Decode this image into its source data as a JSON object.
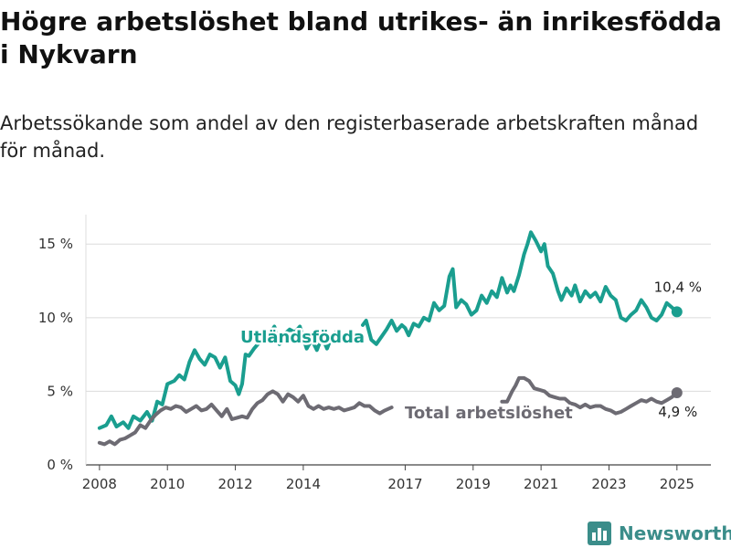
{
  "title": "Högre arbetslöshet bland utrikes- än inrikesfödda i Nykvarn",
  "subtitle": "Arbetssökande som andel av den registerbaserade arbetskraften månad för månad.",
  "brand": {
    "name": "Newsworthy",
    "icon": "bar-chart-logo-icon"
  },
  "chart_data": {
    "type": "line",
    "title": "Högre arbetslöshet bland utrikes- än inrikesfödda i Nykvarn",
    "subtitle": "Arbetssökande som andel av den registerbaserade arbetskraften månad för månad.",
    "xlabel": "",
    "ylabel": "",
    "xlim": [
      2007.6,
      2026.0
    ],
    "ylim": [
      0,
      17
    ],
    "grid": true,
    "legend": "inline",
    "x_ticks": [
      {
        "value": 2008,
        "label": "2008"
      },
      {
        "value": 2010,
        "label": "2010"
      },
      {
        "value": 2012,
        "label": "2012"
      },
      {
        "value": 2014,
        "label": "2014"
      },
      {
        "value": 2017,
        "label": "2017"
      },
      {
        "value": 2019,
        "label": "2019"
      },
      {
        "value": 2021,
        "label": "2021"
      },
      {
        "value": 2023,
        "label": "2023"
      },
      {
        "value": 2025,
        "label": "2025"
      }
    ],
    "y_ticks": [
      {
        "value": 0,
        "label": "0 %"
      },
      {
        "value": 5,
        "label": "5 %"
      },
      {
        "value": 10,
        "label": "10 %"
      },
      {
        "value": 15,
        "label": "15 %"
      }
    ],
    "series": [
      {
        "name": "Utländsfödda",
        "color": "#1a9e8f",
        "end_label": "10,4 %",
        "segments": [
          [
            [
              2008.0,
              2.5
            ],
            [
              2008.2,
              2.7
            ],
            [
              2008.35,
              3.3
            ],
            [
              2008.5,
              2.6
            ],
            [
              2008.7,
              2.9
            ],
            [
              2008.85,
              2.5
            ],
            [
              2009.0,
              3.3
            ],
            [
              2009.2,
              3.0
            ],
            [
              2009.4,
              3.6
            ],
            [
              2009.55,
              3.0
            ],
            [
              2009.7,
              4.3
            ],
            [
              2009.85,
              4.1
            ],
            [
              2010.0,
              5.5
            ],
            [
              2010.2,
              5.7
            ],
            [
              2010.35,
              6.1
            ],
            [
              2010.5,
              5.8
            ],
            [
              2010.65,
              7.0
            ],
            [
              2010.8,
              7.8
            ],
            [
              2010.95,
              7.2
            ],
            [
              2011.1,
              6.8
            ],
            [
              2011.25,
              7.5
            ],
            [
              2011.4,
              7.3
            ],
            [
              2011.55,
              6.6
            ],
            [
              2011.7,
              7.3
            ],
            [
              2011.85,
              5.7
            ],
            [
              2012.0,
              5.4
            ],
            [
              2012.1,
              4.8
            ],
            [
              2012.2,
              5.5
            ],
            [
              2012.3,
              7.5
            ],
            [
              2012.4,
              7.4
            ],
            [
              2012.55,
              7.9
            ],
            [
              2012.7,
              8.3
            ],
            [
              2012.85,
              8.7
            ],
            [
              2013.0,
              8.9
            ],
            [
              2013.15,
              9.4
            ],
            [
              2013.3,
              8.2
            ],
            [
              2013.45,
              8.9
            ],
            [
              2013.6,
              9.2
            ],
            [
              2013.75,
              9.0
            ],
            [
              2013.9,
              9.4
            ],
            [
              2014.0,
              8.6
            ],
            [
              2014.1,
              7.9
            ],
            [
              2014.25,
              8.5
            ],
            [
              2014.4,
              7.8
            ],
            [
              2014.55,
              8.7
            ],
            [
              2014.7,
              7.9
            ],
            [
              2014.85,
              8.8
            ],
            [
              2015.0,
              9.1
            ],
            [
              2015.1,
              8.5
            ]
          ],
          [
            [
              2015.75,
              9.5
            ],
            [
              2015.85,
              9.8
            ],
            [
              2016.0,
              8.5
            ],
            [
              2016.15,
              8.2
            ],
            [
              2016.3,
              8.7
            ],
            [
              2016.45,
              9.2
            ],
            [
              2016.6,
              9.8
            ],
            [
              2016.75,
              9.1
            ],
            [
              2016.9,
              9.5
            ],
            [
              2017.0,
              9.3
            ],
            [
              2017.1,
              8.8
            ],
            [
              2017.25,
              9.6
            ],
            [
              2017.4,
              9.4
            ],
            [
              2017.55,
              10.0
            ],
            [
              2017.7,
              9.8
            ],
            [
              2017.85,
              11.0
            ],
            [
              2018.0,
              10.5
            ],
            [
              2018.15,
              10.8
            ],
            [
              2018.3,
              12.8
            ],
            [
              2018.4,
              13.3
            ],
            [
              2018.5,
              10.7
            ],
            [
              2018.65,
              11.2
            ],
            [
              2018.8,
              10.9
            ],
            [
              2018.95,
              10.2
            ],
            [
              2019.1,
              10.5
            ],
            [
              2019.25,
              11.5
            ],
            [
              2019.4,
              11.0
            ],
            [
              2019.55,
              11.8
            ],
            [
              2019.7,
              11.4
            ],
            [
              2019.85,
              12.7
            ],
            [
              2020.0,
              11.7
            ],
            [
              2020.1,
              12.2
            ],
            [
              2020.2,
              11.8
            ],
            [
              2020.35,
              12.9
            ],
            [
              2020.5,
              14.3
            ],
            [
              2020.6,
              15.0
            ],
            [
              2020.7,
              15.8
            ],
            [
              2020.85,
              15.2
            ],
            [
              2021.0,
              14.5
            ],
            [
              2021.1,
              15.0
            ],
            [
              2021.2,
              13.5
            ],
            [
              2021.35,
              13.0
            ],
            [
              2021.5,
              11.8
            ],
            [
              2021.6,
              11.2
            ],
            [
              2021.75,
              12.0
            ],
            [
              2021.9,
              11.5
            ],
            [
              2022.0,
              12.2
            ],
            [
              2022.15,
              11.1
            ],
            [
              2022.3,
              11.8
            ],
            [
              2022.45,
              11.4
            ],
            [
              2022.6,
              11.7
            ],
            [
              2022.75,
              11.1
            ],
            [
              2022.9,
              12.1
            ],
            [
              2023.05,
              11.5
            ],
            [
              2023.2,
              11.2
            ],
            [
              2023.35,
              10.0
            ],
            [
              2023.5,
              9.8
            ],
            [
              2023.65,
              10.2
            ],
            [
              2023.8,
              10.5
            ],
            [
              2023.95,
              11.2
            ],
            [
              2024.1,
              10.7
            ],
            [
              2024.25,
              10.0
            ],
            [
              2024.4,
              9.8
            ],
            [
              2024.55,
              10.2
            ],
            [
              2024.7,
              11.0
            ],
            [
              2024.85,
              10.7
            ],
            [
              2025.0,
              10.4
            ]
          ]
        ]
      },
      {
        "name": "Total arbetslöshet",
        "color": "#6d6b73",
        "end_label": "4,9 %",
        "segments": [
          [
            [
              2008.0,
              1.5
            ],
            [
              2008.15,
              1.4
            ],
            [
              2008.3,
              1.6
            ],
            [
              2008.45,
              1.4
            ],
            [
              2008.6,
              1.7
            ],
            [
              2008.75,
              1.8
            ],
            [
              2008.9,
              2.0
            ],
            [
              2009.05,
              2.2
            ],
            [
              2009.2,
              2.7
            ],
            [
              2009.35,
              2.5
            ],
            [
              2009.5,
              3.0
            ],
            [
              2009.65,
              3.4
            ],
            [
              2009.8,
              3.7
            ],
            [
              2009.95,
              3.9
            ],
            [
              2010.1,
              3.8
            ],
            [
              2010.25,
              4.0
            ],
            [
              2010.4,
              3.9
            ],
            [
              2010.55,
              3.6
            ],
            [
              2010.7,
              3.8
            ],
            [
              2010.85,
              4.0
            ],
            [
              2011.0,
              3.7
            ],
            [
              2011.15,
              3.8
            ],
            [
              2011.3,
              4.1
            ],
            [
              2011.45,
              3.7
            ],
            [
              2011.6,
              3.3
            ],
            [
              2011.75,
              3.8
            ],
            [
              2011.9,
              3.1
            ],
            [
              2012.05,
              3.2
            ],
            [
              2012.2,
              3.3
            ],
            [
              2012.35,
              3.2
            ],
            [
              2012.5,
              3.8
            ],
            [
              2012.65,
              4.2
            ],
            [
              2012.8,
              4.4
            ],
            [
              2012.95,
              4.8
            ],
            [
              2013.1,
              5.0
            ],
            [
              2013.25,
              4.8
            ],
            [
              2013.4,
              4.3
            ],
            [
              2013.55,
              4.8
            ],
            [
              2013.7,
              4.6
            ],
            [
              2013.85,
              4.3
            ],
            [
              2014.0,
              4.7
            ],
            [
              2014.15,
              4.0
            ],
            [
              2014.3,
              3.8
            ],
            [
              2014.45,
              4.0
            ],
            [
              2014.6,
              3.8
            ],
            [
              2014.75,
              3.9
            ],
            [
              2014.9,
              3.8
            ],
            [
              2015.05,
              3.9
            ],
            [
              2015.2,
              3.7
            ],
            [
              2015.35,
              3.8
            ],
            [
              2015.5,
              3.9
            ],
            [
              2015.65,
              4.2
            ],
            [
              2015.8,
              4.0
            ],
            [
              2015.95,
              4.0
            ],
            [
              2016.1,
              3.7
            ],
            [
              2016.25,
              3.5
            ],
            [
              2016.4,
              3.7
            ],
            [
              2016.6,
              3.9
            ]
          ],
          [
            [
              2019.85,
              4.3
            ],
            [
              2020.0,
              4.3
            ],
            [
              2020.15,
              5.0
            ],
            [
              2020.25,
              5.4
            ],
            [
              2020.35,
              5.9
            ],
            [
              2020.5,
              5.9
            ],
            [
              2020.65,
              5.7
            ],
            [
              2020.8,
              5.2
            ],
            [
              2020.95,
              5.1
            ],
            [
              2021.1,
              5.0
            ],
            [
              2021.25,
              4.7
            ],
            [
              2021.4,
              4.6
            ],
            [
              2021.55,
              4.5
            ],
            [
              2021.7,
              4.5
            ],
            [
              2021.85,
              4.2
            ],
            [
              2022.0,
              4.1
            ],
            [
              2022.15,
              3.9
            ],
            [
              2022.3,
              4.1
            ],
            [
              2022.45,
              3.9
            ],
            [
              2022.6,
              4.0
            ],
            [
              2022.75,
              4.0
            ],
            [
              2022.9,
              3.8
            ],
            [
              2023.05,
              3.7
            ],
            [
              2023.2,
              3.5
            ],
            [
              2023.35,
              3.6
            ],
            [
              2023.5,
              3.8
            ],
            [
              2023.65,
              4.0
            ],
            [
              2023.8,
              4.2
            ],
            [
              2023.95,
              4.4
            ],
            [
              2024.1,
              4.3
            ],
            [
              2024.25,
              4.5
            ],
            [
              2024.4,
              4.3
            ],
            [
              2024.55,
              4.2
            ],
            [
              2024.7,
              4.4
            ],
            [
              2024.85,
              4.6
            ],
            [
              2025.0,
              4.9
            ]
          ]
        ]
      }
    ],
    "annotations": [
      {
        "text": "Utländsfödda",
        "series": 0
      },
      {
        "text": "Total arbetslöshet",
        "series": 1
      }
    ]
  }
}
